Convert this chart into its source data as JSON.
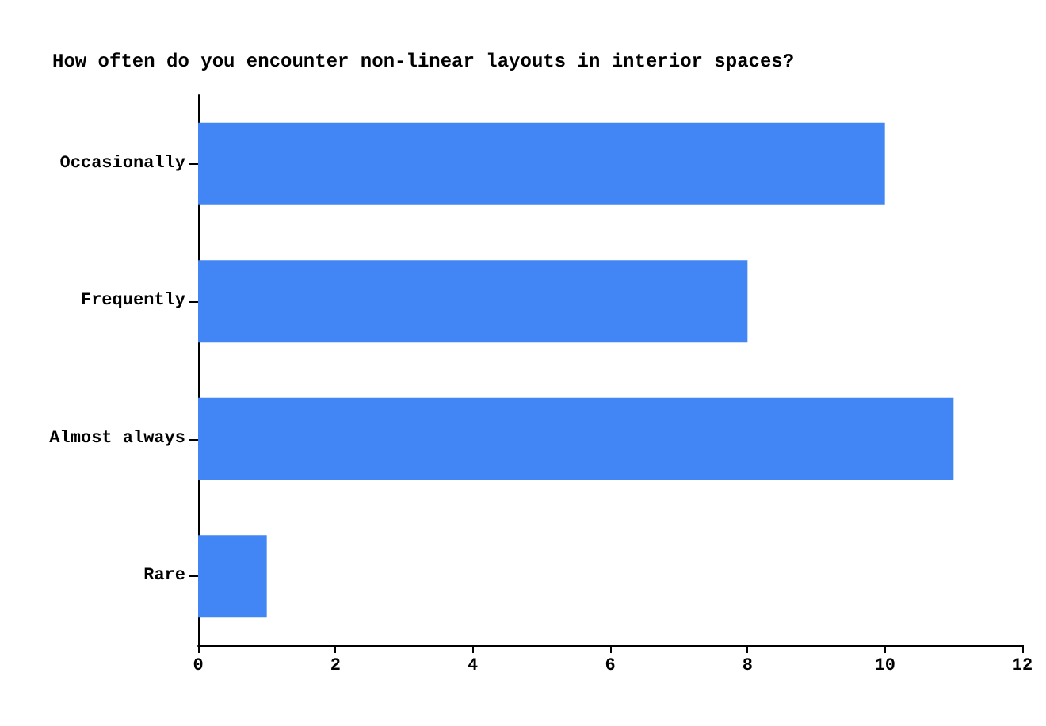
{
  "chart_data": {
    "type": "bar",
    "orientation": "horizontal",
    "title": "How often do you encounter non-linear layouts in interior spaces?",
    "categories": [
      "Occasionally",
      "Frequently",
      "Almost always",
      "Rare"
    ],
    "values": [
      10,
      8,
      11,
      1
    ],
    "color": "#4285f4",
    "xlim": [
      0,
      12
    ],
    "xticks": [
      0,
      2,
      4,
      6,
      8,
      10,
      12
    ],
    "grid": false
  }
}
